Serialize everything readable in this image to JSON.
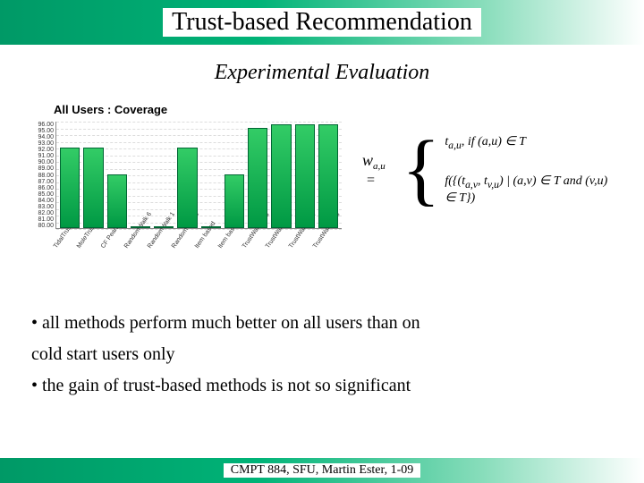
{
  "title": "Trust-based Recommendation",
  "subtitle": "Experimental Evaluation",
  "chart": {
    "title": "All Users : Coverage",
    "type": "bar",
    "y_ticks": [
      "96.00",
      "95.00",
      "94.00",
      "93.00",
      "92.00",
      "91.00",
      "90.00",
      "89.00",
      "88.00",
      "87.00",
      "86.00",
      "85.00",
      "84.00",
      "83.00",
      "82.00",
      "81.00",
      "80.00"
    ],
    "ylim": [
      80,
      96
    ],
    "categories": [
      "TidalTrust",
      "MoleTrust",
      "CF Pearson",
      "RandomWalk 6",
      "RandomWalk 1",
      "RandomWalk 0",
      "Item based",
      "Item based 4",
      "TrustWalker0 3",
      "TrustWalker0 4",
      "TrustWalker0 4",
      "TrustWalker0 6"
    ],
    "values": [
      92,
      92,
      88,
      80,
      80,
      92,
      80,
      88,
      95,
      95.5,
      95.5,
      95.5
    ],
    "bar_color_top": "#33cc66",
    "bar_color_bottom": "#009944",
    "bar_border": "#006633",
    "grid_color": "#dddddd",
    "axis_color": "#888888",
    "label_fontsize": 7
  },
  "formula": {
    "lhs_var": "w",
    "lhs_sub": "a,u",
    "case1": "t<sub>a,u</sub>, if (a,u) ∈ T",
    "case2": "f({(t<sub>a,v</sub>, t<sub>v,u</sub>) | (a,v) ∈ T and (v,u) ∈ T})"
  },
  "bullets": [
    "• all methods perform much better on all users than on",
    "  cold start users only",
    "• the gain of trust-based methods is not so significant"
  ],
  "footer": "CMPT 884, SFU, Martin Ester, 1-09",
  "colors": {
    "header_gradient_start": "#009966",
    "header_gradient_end": "#ffffff",
    "text": "#000000"
  }
}
